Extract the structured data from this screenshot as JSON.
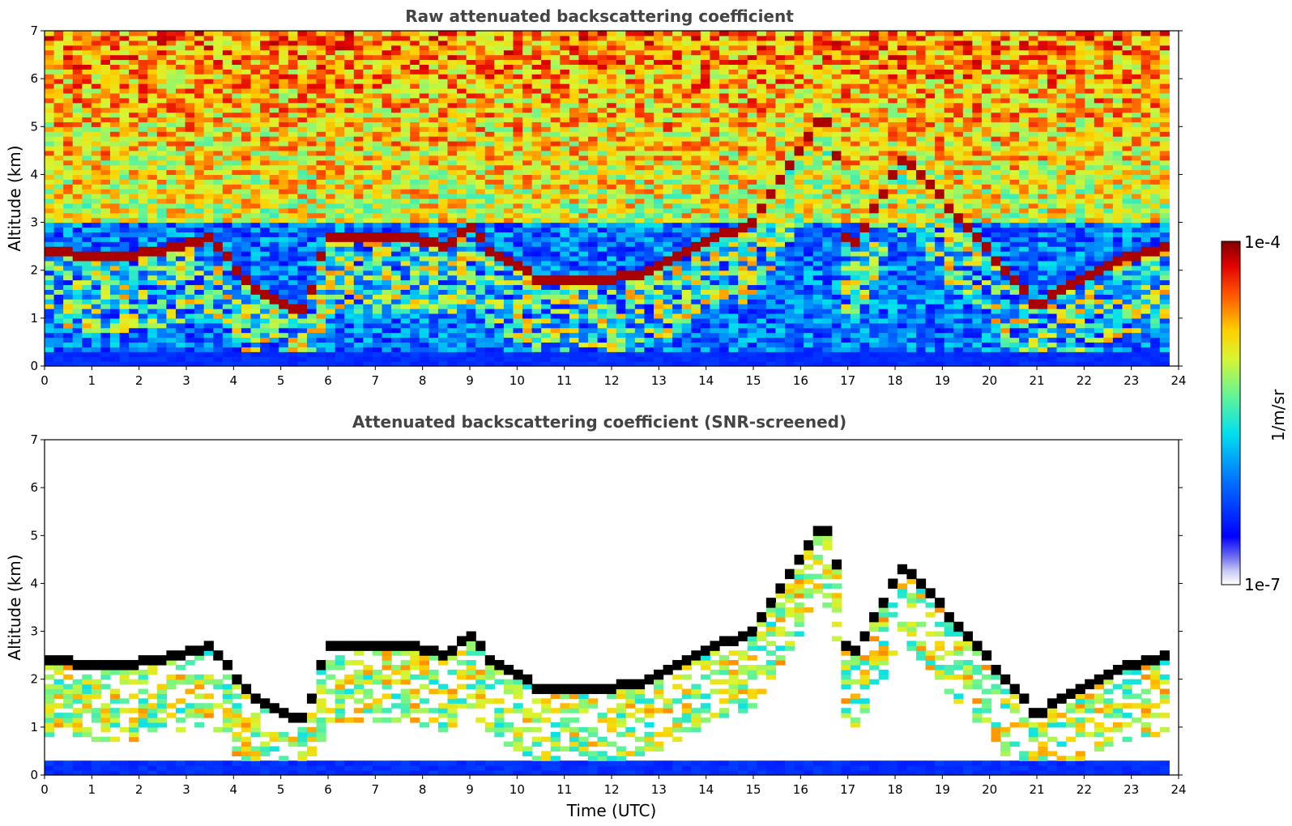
{
  "chart_data": [
    {
      "type": "heatmap",
      "title": "Raw attenuated backscattering coefficient",
      "xlabel": "",
      "ylabel": "Altitude (km)",
      "xlim": [
        0,
        24
      ],
      "ylim": [
        0,
        7
      ],
      "x_ticks": [
        "0",
        "1",
        "2",
        "3",
        "4",
        "5",
        "6",
        "7",
        "8",
        "9",
        "10",
        "11",
        "12",
        "13",
        "14",
        "15",
        "16",
        "17",
        "18",
        "19",
        "20",
        "21",
        "22",
        "23",
        "24"
      ],
      "y_ticks": [
        "0",
        "1",
        "2",
        "3",
        "4",
        "5",
        "6",
        "7"
      ],
      "screened": false,
      "cloud_layer": [
        {
          "x": 0.0,
          "y": 2.45
        },
        {
          "x": 1.0,
          "y": 2.3
        },
        {
          "x": 2.0,
          "y": 2.35
        },
        {
          "x": 2.8,
          "y": 2.5
        },
        {
          "x": 3.5,
          "y": 2.7
        },
        {
          "x": 4.5,
          "y": 1.55
        },
        {
          "x": 5.5,
          "y": 1.15
        },
        {
          "x": 6.0,
          "y": 2.75
        },
        {
          "x": 6.5,
          "y": 2.7
        },
        {
          "x": 7.5,
          "y": 2.75
        },
        {
          "x": 8.5,
          "y": 2.5
        },
        {
          "x": 9.0,
          "y": 2.95
        },
        {
          "x": 9.5,
          "y": 2.35
        },
        {
          "x": 10.5,
          "y": 1.8
        },
        {
          "x": 11.5,
          "y": 1.8
        },
        {
          "x": 12.5,
          "y": 1.9
        },
        {
          "x": 13.5,
          "y": 2.3
        },
        {
          "x": 14.0,
          "y": 2.6
        },
        {
          "x": 15.0,
          "y": 3.0
        },
        {
          "x": 16.5,
          "y": 5.3
        },
        {
          "x": 16.8,
          "y": 4.3
        },
        {
          "x": 17.0,
          "y": 2.3
        },
        {
          "x": 18.2,
          "y": 4.4
        },
        {
          "x": 21.0,
          "y": 1.25
        },
        {
          "x": 22.0,
          "y": 1.9
        },
        {
          "x": 23.0,
          "y": 2.3
        },
        {
          "x": 23.7,
          "y": 2.5
        }
      ],
      "colorbar": {
        "min_label": "1e-7",
        "max_label": "1e-4",
        "unit": "1/m/sr",
        "colormap": "jet"
      }
    },
    {
      "type": "heatmap",
      "title": "Attenuated backscattering coefficient (SNR-screened)",
      "xlabel": "Time (UTC)",
      "ylabel": "Altitude (km)",
      "xlim": [
        0,
        24
      ],
      "ylim": [
        0,
        7
      ],
      "x_ticks": [
        "0",
        "1",
        "2",
        "3",
        "4",
        "5",
        "6",
        "7",
        "8",
        "9",
        "10",
        "11",
        "12",
        "13",
        "14",
        "15",
        "16",
        "17",
        "18",
        "19",
        "20",
        "21",
        "22",
        "23",
        "24"
      ],
      "y_ticks": [
        "0",
        "1",
        "2",
        "3",
        "4",
        "5",
        "6",
        "7"
      ],
      "screened": true,
      "saturated_color": "#000000"
    }
  ],
  "colorbar": {
    "max_label": "1e-4",
    "min_label": "1e-7",
    "unit_label": "1/m/sr"
  },
  "colors": {
    "title": "#444444",
    "background": "#ffffff"
  }
}
